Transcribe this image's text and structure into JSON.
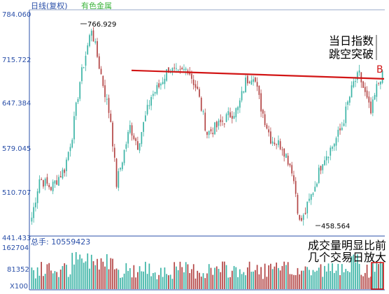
{
  "chart_data": [
    {
      "type": "candlestick",
      "header": "日线(复权)",
      "header_tab": "有色金属",
      "ylim": [
        441.433,
        784.06
      ],
      "yticks": [
        "784.060",
        "715.722",
        "647.384",
        "579.045",
        "510.707",
        "441.433"
      ],
      "annotations": {
        "high_label": "766.929",
        "low_label": "458.564",
        "line_marker": "B",
        "note": [
          "当日指数",
          "跳空突破"
        ]
      },
      "trendline": {
        "from": 697.0,
        "to": 684.0
      },
      "colors": {
        "up": "#3cb4a6",
        "down": "#b34545",
        "trend": "#d21515",
        "axis": "#2a4fa8"
      },
      "anchors": [
        {
          "i": 0,
          "v": 470
        },
        {
          "i": 4,
          "v": 530
        },
        {
          "i": 10,
          "v": 516
        },
        {
          "i": 17,
          "v": 545
        },
        {
          "i": 21,
          "v": 598
        },
        {
          "i": 25,
          "v": 680
        },
        {
          "i": 31,
          "v": 762
        },
        {
          "i": 36,
          "v": 690
        },
        {
          "i": 41,
          "v": 620
        },
        {
          "i": 44,
          "v": 522
        },
        {
          "i": 51,
          "v": 610
        },
        {
          "i": 55,
          "v": 582
        },
        {
          "i": 62,
          "v": 657
        },
        {
          "i": 66,
          "v": 672
        },
        {
          "i": 71,
          "v": 700
        },
        {
          "i": 76,
          "v": 690
        },
        {
          "i": 81,
          "v": 701
        },
        {
          "i": 86,
          "v": 665
        },
        {
          "i": 91,
          "v": 600
        },
        {
          "i": 96,
          "v": 610
        },
        {
          "i": 102,
          "v": 627
        },
        {
          "i": 107,
          "v": 637
        },
        {
          "i": 111,
          "v": 680
        },
        {
          "i": 115,
          "v": 692
        },
        {
          "i": 119,
          "v": 640
        },
        {
          "i": 124,
          "v": 592
        },
        {
          "i": 130,
          "v": 580
        },
        {
          "i": 135,
          "v": 545
        },
        {
          "i": 137,
          "v": 508
        },
        {
          "i": 139,
          "v": 462
        },
        {
          "i": 141,
          "v": 470
        },
        {
          "i": 147,
          "v": 520
        },
        {
          "i": 151,
          "v": 560
        },
        {
          "i": 156,
          "v": 580
        },
        {
          "i": 161,
          "v": 610
        },
        {
          "i": 164,
          "v": 646
        },
        {
          "i": 167,
          "v": 677
        },
        {
          "i": 170,
          "v": 690
        },
        {
          "i": 173,
          "v": 660
        },
        {
          "i": 176,
          "v": 630
        },
        {
          "i": 179,
          "v": 670
        },
        {
          "i": 182,
          "v": 696
        }
      ]
    },
    {
      "type": "bar",
      "header_label": "总手: 10559423",
      "yticks": [
        "162704",
        "81352",
        "X100"
      ],
      "ylim": [
        0,
        162704
      ],
      "annotation": [
        "成交量明显比前",
        "几个交易日放大"
      ]
    }
  ]
}
